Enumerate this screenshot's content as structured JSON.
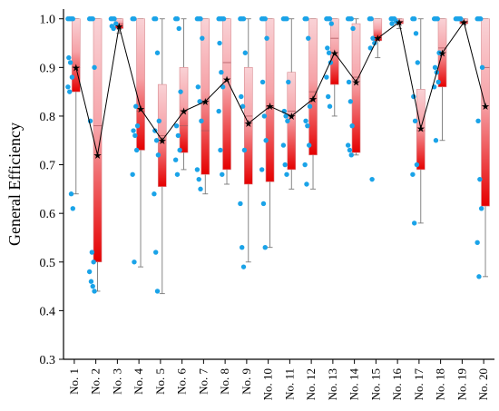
{
  "chart_data": {
    "type": "box",
    "ylabel": "General Efficiency",
    "xlabel": "",
    "ylim": [
      0.3,
      1.0
    ],
    "yticks": [
      0.3,
      0.4,
      0.5,
      0.6,
      0.7,
      0.8,
      0.9,
      1.0
    ],
    "grid": false,
    "colors": {
      "box_light": "#f7c6cb",
      "box_dark": "#e30000",
      "points": "#1aa3e8",
      "mean_line": "#000000",
      "whisker": "#7a7a7a"
    },
    "categories": [
      "No. 1",
      "No. 2",
      "No. 3",
      "No. 4",
      "No. 5",
      "No. 6",
      "No. 7",
      "No. 8",
      "No. 9",
      "No. 10",
      "No. 11",
      "No. 12",
      "No. 13",
      "No. 14",
      "No. 15",
      "No. 16",
      "No. 17",
      "No. 18",
      "No. 19",
      "No. 20"
    ],
    "boxes": [
      {
        "q1": 0.85,
        "median": 0.9,
        "q3": 1.0,
        "whisker_low": 0.64,
        "whisker_high": 1.0,
        "mean": 0.9
      },
      {
        "q1": 0.5,
        "median": 0.78,
        "q3": 1.0,
        "whisker_low": 0.44,
        "whisker_high": 1.0,
        "mean": 0.72
      },
      {
        "q1": 0.98,
        "median": 0.99,
        "q3": 1.0,
        "whisker_low": 0.97,
        "whisker_high": 1.0,
        "mean": 0.985
      },
      {
        "q1": 0.73,
        "median": 0.81,
        "q3": 1.0,
        "whisker_low": 0.49,
        "whisker_high": 1.0,
        "mean": 0.815
      },
      {
        "q1": 0.655,
        "median": 0.76,
        "q3": 0.865,
        "whisker_low": 0.435,
        "whisker_high": 1.0,
        "mean": 0.75
      },
      {
        "q1": 0.725,
        "median": 0.78,
        "q3": 0.9,
        "whisker_low": 0.69,
        "whisker_high": 1.0,
        "mean": 0.81
      },
      {
        "q1": 0.68,
        "median": 0.77,
        "q3": 1.0,
        "whisker_low": 0.64,
        "whisker_high": 1.0,
        "mean": 0.83
      },
      {
        "q1": 0.69,
        "median": 0.91,
        "q3": 1.0,
        "whisker_low": 0.66,
        "whisker_high": 1.0,
        "mean": 0.875
      },
      {
        "q1": 0.66,
        "median": 0.8,
        "q3": 0.9,
        "whisker_low": 0.5,
        "whisker_high": 1.0,
        "mean": 0.785
      },
      {
        "q1": 0.665,
        "median": 0.82,
        "q3": 1.0,
        "whisker_low": 0.53,
        "whisker_high": 1.0,
        "mean": 0.82
      },
      {
        "q1": 0.69,
        "median": 0.81,
        "q3": 0.89,
        "whisker_low": 0.65,
        "whisker_high": 1.0,
        "mean": 0.8
      },
      {
        "q1": 0.72,
        "median": 0.85,
        "q3": 1.0,
        "whisker_low": 0.65,
        "whisker_high": 1.0,
        "mean": 0.835
      },
      {
        "q1": 0.865,
        "median": 0.96,
        "q3": 1.0,
        "whisker_low": 0.8,
        "whisker_high": 1.0,
        "mean": 0.93
      },
      {
        "q1": 0.725,
        "median": 0.88,
        "q3": 0.99,
        "whisker_low": 0.72,
        "whisker_high": 1.0,
        "mean": 0.87
      },
      {
        "q1": 0.955,
        "median": 0.96,
        "q3": 1.0,
        "whisker_low": 0.92,
        "whisker_high": 1.0,
        "mean": 0.96
      },
      {
        "q1": 0.99,
        "median": 0.995,
        "q3": 1.0,
        "whisker_low": 0.98,
        "whisker_high": 1.0,
        "mean": 0.993
      },
      {
        "q1": 0.69,
        "median": 0.77,
        "q3": 0.855,
        "whisker_low": 0.58,
        "whisker_high": 1.0,
        "mean": 0.775
      },
      {
        "q1": 0.86,
        "median": 0.94,
        "q3": 1.0,
        "whisker_low": 0.75,
        "whisker_high": 1.0,
        "mean": 0.93
      },
      {
        "q1": 0.99,
        "median": 0.995,
        "q3": 1.0,
        "whisker_low": 0.99,
        "whisker_high": 1.0,
        "mean": 0.993
      },
      {
        "q1": 0.615,
        "median": 0.9,
        "q3": 1.0,
        "whisker_low": 0.47,
        "whisker_high": 1.0,
        "mean": 0.82
      }
    ],
    "points": [
      [
        1.0,
        1.0,
        1.0,
        1.0,
        0.92,
        0.91,
        0.88,
        0.86,
        0.85,
        0.64,
        0.61
      ],
      [
        1.0,
        1.0,
        1.0,
        0.9,
        0.79,
        0.52,
        0.5,
        0.48,
        0.46,
        0.45,
        0.44
      ],
      [
        1.0,
        1.0,
        1.0,
        0.99,
        0.985,
        0.98
      ],
      [
        1.0,
        1.0,
        0.82,
        0.78,
        0.77,
        0.76,
        0.73,
        0.68,
        0.5
      ],
      [
        1.0,
        1.0,
        0.93,
        0.79,
        0.77,
        0.75,
        0.72,
        0.64,
        0.52,
        0.44
      ],
      [
        1.0,
        1.0,
        0.98,
        0.85,
        0.78,
        0.76,
        0.73,
        0.71,
        0.68
      ],
      [
        1.0,
        1.0,
        1.0,
        0.96,
        0.86,
        0.83,
        0.79,
        0.69,
        0.67,
        0.65
      ],
      [
        1.0,
        1.0,
        1.0,
        1.0,
        0.95,
        0.89,
        0.86,
        0.81,
        0.73,
        0.68
      ],
      [
        1.0,
        1.0,
        1.0,
        0.93,
        0.84,
        0.82,
        0.73,
        0.62,
        0.53,
        0.49
      ],
      [
        1.0,
        1.0,
        1.0,
        0.96,
        0.87,
        0.8,
        0.75,
        0.69,
        0.62,
        0.53
      ],
      [
        1.0,
        1.0,
        1.0,
        0.87,
        0.81,
        0.8,
        0.79,
        0.74,
        0.7,
        0.68
      ],
      [
        1.0,
        1.0,
        0.96,
        0.82,
        0.79,
        0.78,
        0.74,
        0.7,
        0.66
      ],
      [
        1.0,
        1.0,
        1.0,
        0.99,
        0.94,
        0.93,
        0.91,
        0.88,
        0.84,
        0.82
      ],
      [
        1.0,
        1.0,
        1.0,
        0.98,
        0.87,
        0.83,
        0.78,
        0.74,
        0.73,
        0.72
      ],
      [
        1.0,
        1.0,
        0.96,
        0.95,
        0.94,
        0.67
      ],
      [
        1.0,
        1.0,
        1.0,
        0.995,
        0.99
      ],
      [
        1.0,
        1.0,
        0.97,
        0.91,
        0.84,
        0.79,
        0.7,
        0.68,
        0.58
      ],
      [
        1.0,
        1.0,
        1.0,
        0.93,
        0.9,
        0.89,
        0.87,
        0.86,
        0.75
      ],
      [
        1.0,
        1.0,
        1.0,
        1.0
      ],
      [
        1.0,
        1.0,
        1.0,
        0.9,
        0.79,
        0.67,
        0.61,
        0.54,
        0.47
      ]
    ]
  }
}
